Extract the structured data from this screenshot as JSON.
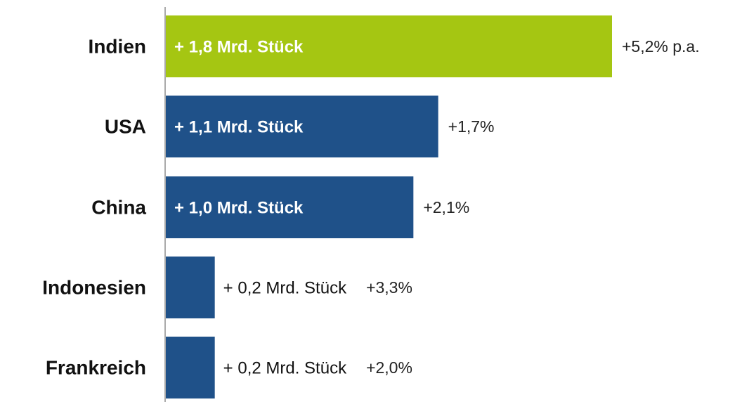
{
  "chart_data": {
    "type": "bar",
    "orientation": "horizontal",
    "categories": [
      "Indien",
      "USA",
      "China",
      "Indonesien",
      "Frankreich"
    ],
    "values": [
      1.8,
      1.1,
      1.0,
      0.2,
      0.2
    ],
    "value_labels": [
      "+ 1,8 Mrd. Stück",
      "+ 1,1 Mrd. Stück",
      "+ 1,0 Mrd. Stück",
      "+ 0,2 Mrd. Stück",
      "+ 0,2 Mrd. Stück"
    ],
    "annotations": [
      "+5,2% p.a.",
      "+1,7%",
      "+2,1%",
      "+3,3%",
      "+2,0%"
    ],
    "colors": [
      "#a5c612",
      "#1f5189",
      "#1f5189",
      "#1f5189",
      "#1f5189"
    ]
  }
}
